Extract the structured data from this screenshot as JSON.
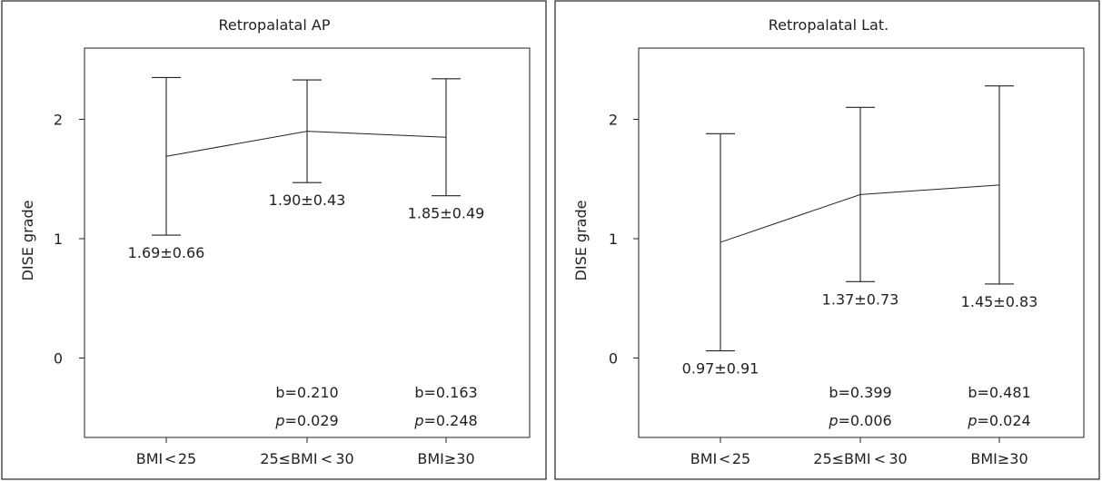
{
  "chart_data": [
    {
      "type": "line",
      "title": "Retropalatal AP",
      "ylabel": "DISE grade",
      "xlabel": "",
      "ylim": [
        -0.65,
        2.6
      ],
      "yticks": [
        0,
        1,
        2
      ],
      "categories": [
        "BMI < 25",
        "25≤BMI < 30",
        "BMI≥30"
      ],
      "series": [
        {
          "name": "Retropalatal AP",
          "means": [
            1.69,
            1.9,
            1.85
          ],
          "sd": [
            0.66,
            0.43,
            0.49
          ]
        }
      ],
      "data_labels": [
        "1.69±0.66",
        "1.90±0.43",
        "1.85±0.49"
      ],
      "b_values": [
        "",
        "b=0.210",
        "b=0.163"
      ],
      "p_values": [
        "",
        "=0.029",
        "=0.248"
      ]
    },
    {
      "type": "line",
      "title": "Retropalatal Lat.",
      "ylabel": "DISE grade",
      "xlabel": "",
      "ylim": [
        -0.65,
        2.6
      ],
      "yticks": [
        0,
        1,
        2
      ],
      "categories": [
        "BMI < 25",
        "25≤BMI < 30",
        "BMI≥30"
      ],
      "series": [
        {
          "name": "Retropalatal Lat.",
          "means": [
            0.97,
            1.37,
            1.45
          ],
          "sd": [
            0.91,
            0.73,
            0.83
          ]
        }
      ],
      "data_labels": [
        "0.97±0.91",
        "1.37±0.73",
        "1.45±0.83"
      ],
      "b_values": [
        "",
        "b=0.399",
        "b=0.481"
      ],
      "p_values": [
        "",
        "=0.006",
        "=0.024"
      ]
    }
  ],
  "p_symbol": "p"
}
